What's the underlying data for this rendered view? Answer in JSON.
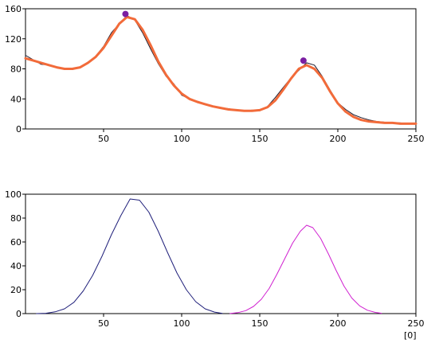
{
  "colors": {
    "top_measured": "#1a1a2e",
    "top_fit": "#f26b3a",
    "top_peak_marker": "#7a1fa2",
    "bottom_peak1": "#1f1f7a",
    "bottom_peak2": "#d020d0",
    "axis": "#000000"
  },
  "chart_data": [
    {
      "type": "line",
      "title": "",
      "xlabel": "",
      "ylabel": "",
      "xlim": [
        0,
        250
      ],
      "ylim": [
        0,
        160
      ],
      "x_ticks": [
        50,
        100,
        150,
        200,
        250
      ],
      "y_ticks": [
        0,
        40,
        80,
        120,
        160
      ],
      "x_tick_labels": [
        "50",
        "100",
        "150",
        "200",
        "250"
      ],
      "y_tick_labels": [
        "0",
        "40",
        "80",
        "120",
        "160"
      ],
      "grid": false,
      "series": [
        {
          "role": "measured",
          "x": [
            0,
            5,
            10,
            15,
            20,
            25,
            30,
            35,
            40,
            45,
            50,
            55,
            60,
            65,
            70,
            75,
            80,
            85,
            90,
            95,
            100,
            105,
            110,
            115,
            120,
            125,
            130,
            135,
            140,
            145,
            150,
            155,
            160,
            165,
            170,
            175,
            180,
            185,
            190,
            195,
            200,
            205,
            210,
            215,
            220,
            225,
            230,
            235,
            240,
            245,
            250
          ],
          "y": [
            98,
            92,
            86,
            85,
            82,
            80,
            79,
            82,
            89,
            97,
            110,
            128,
            140,
            151,
            145,
            128,
            107,
            87,
            70,
            60,
            45,
            40,
            37,
            33,
            30,
            28,
            27,
            25,
            24,
            25,
            24,
            30,
            42,
            55,
            68,
            78,
            88,
            85,
            70,
            52,
            35,
            26,
            19,
            15,
            12,
            10,
            9,
            8,
            8,
            7,
            7
          ]
        },
        {
          "role": "fit",
          "x": [
            0,
            5,
            10,
            15,
            20,
            25,
            30,
            35,
            40,
            45,
            50,
            55,
            60,
            65,
            70,
            75,
            80,
            85,
            90,
            95,
            100,
            105,
            110,
            115,
            120,
            125,
            130,
            135,
            140,
            145,
            150,
            155,
            160,
            165,
            170,
            175,
            180,
            185,
            190,
            195,
            200,
            205,
            210,
            215,
            220,
            225,
            230,
            235,
            240,
            245,
            250
          ],
          "y": [
            94,
            91,
            88,
            85,
            82,
            80,
            80,
            82,
            88,
            96,
            108,
            124,
            140,
            149,
            146,
            132,
            112,
            90,
            72,
            58,
            47,
            40,
            36,
            33,
            30,
            28,
            26,
            25,
            24,
            24,
            25,
            29,
            38,
            52,
            67,
            80,
            85,
            80,
            68,
            50,
            34,
            23,
            16,
            12,
            10,
            9,
            8,
            8,
            7,
            7,
            7
          ]
        }
      ],
      "peak_markers": [
        {
          "x": 64,
          "y": 153
        },
        {
          "x": 178,
          "y": 91
        }
      ]
    },
    {
      "type": "line",
      "title": "",
      "xlabel": "[0]",
      "ylabel": "",
      "xlim": [
        0,
        250
      ],
      "ylim": [
        0,
        100
      ],
      "x_ticks": [
        50,
        100,
        150,
        200,
        250
      ],
      "y_ticks": [
        0,
        20,
        40,
        60,
        80,
        100
      ],
      "x_tick_labels": [
        "50",
        "100",
        "150",
        "200",
        "250"
      ],
      "y_tick_labels": [
        "0",
        "20",
        "40",
        "60",
        "80",
        "100"
      ],
      "grid": false,
      "series": [
        {
          "role": "peak-1",
          "x": [
            7,
            13,
            19,
            25,
            31,
            37,
            43,
            49,
            55,
            61,
            67,
            73,
            79,
            85,
            91,
            97,
            103,
            109,
            115,
            121,
            126
          ],
          "y": [
            0.02,
            0.3,
            1.5,
            4,
            9.5,
            19,
            32,
            48,
            66,
            82,
            96,
            95,
            85,
            69,
            51,
            34,
            20,
            10,
            4,
            1.3,
            0.2
          ]
        },
        {
          "role": "peak-2",
          "x": [
            131,
            136,
            141,
            146,
            151,
            156,
            161,
            166,
            171,
            176,
            180,
            184,
            189,
            194,
            199,
            204,
            209,
            214,
            219,
            224,
            228
          ],
          "y": [
            0.1,
            0.8,
            2.5,
            6,
            12,
            21,
            33,
            46,
            59,
            69,
            74,
            72,
            63,
            50,
            36,
            23,
            13,
            6.5,
            2.8,
            1,
            0.3
          ]
        }
      ]
    }
  ]
}
